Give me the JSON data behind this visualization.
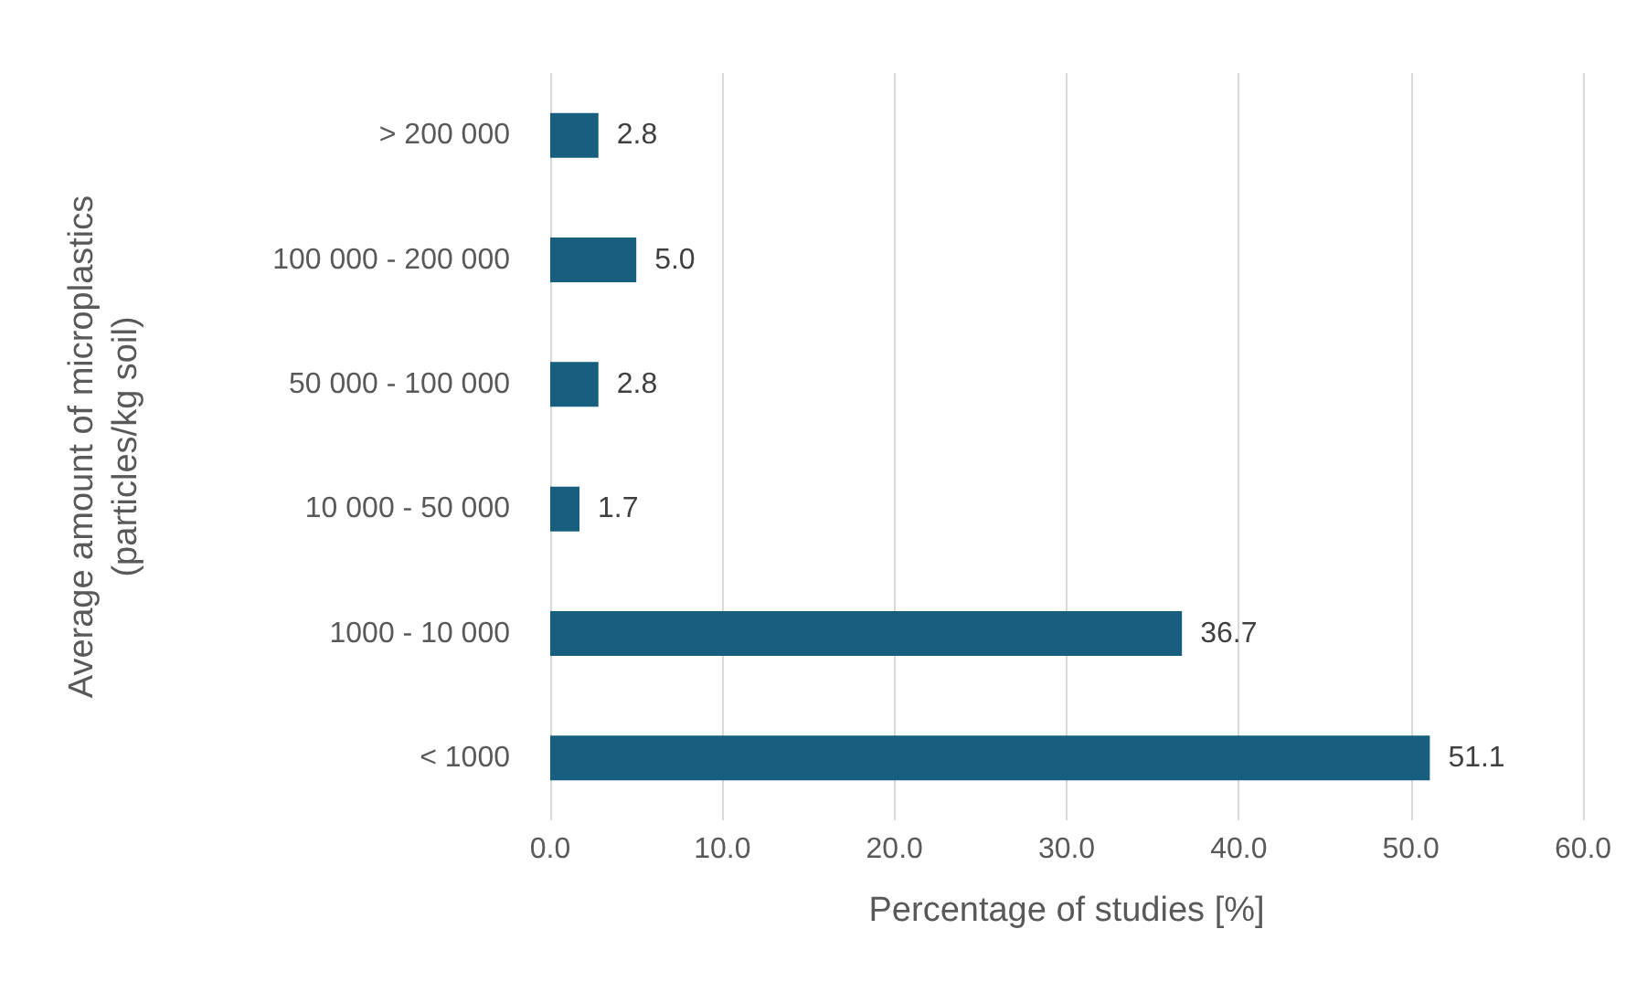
{
  "chart_data": {
    "type": "bar",
    "orientation": "horizontal",
    "xlabel": "Percentage of studies [%]",
    "ylabel": "Average amount of microplastics (particles/kg soil)",
    "categories": [
      "> 200 000",
      "100 000 - 200 000",
      "50 000 - 100 000",
      "10 000 - 50 000",
      "1000 - 10 000",
      "< 1000"
    ],
    "values": [
      2.8,
      5.0,
      2.8,
      1.7,
      36.7,
      51.1
    ],
    "value_labels": [
      "2.8",
      "5.0",
      "2.8",
      "1.7",
      "36.7",
      "51.1"
    ],
    "color": "#175e7f",
    "xlim": [
      0,
      60
    ],
    "xticks": [
      {
        "value": 0,
        "label": "0.0"
      },
      {
        "value": 10,
        "label": "10.0"
      },
      {
        "value": 20,
        "label": "20.0"
      },
      {
        "value": 30,
        "label": "30.0"
      },
      {
        "value": 40,
        "label": "40.0"
      },
      {
        "value": 50,
        "label": "50.0"
      },
      {
        "value": 60,
        "label": "60.0"
      }
    ],
    "grid": "x"
  }
}
